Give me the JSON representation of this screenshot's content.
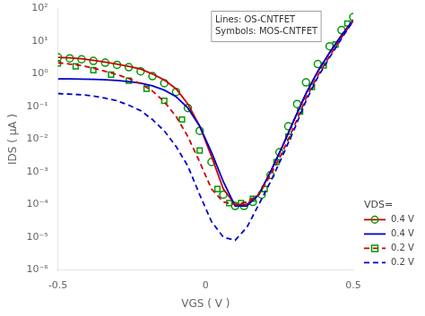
{
  "chart_data": {
    "type": "line",
    "annotation": [
      "Lines: OS-CNTFET",
      "Symbols: MOS-CNTFET"
    ],
    "xlabel": "VGS ( V )",
    "ylabel": "IDS ( μA )",
    "log": "y",
    "grid": false,
    "legend": "right",
    "legend_title": "VDS=",
    "legend_entries": [
      {
        "label": "0.4 V",
        "color": "#cc0000",
        "line_style": "solid",
        "marker": "circle"
      },
      {
        "label": "0.4 V",
        "color": "#0000cc",
        "line_style": "solid"
      },
      {
        "label": "0.2 V",
        "color": "#cc0000",
        "line_style": "dashed",
        "marker": "square"
      },
      {
        "label": "0.2 V",
        "color": "#0000cc",
        "line_style": "dashed"
      }
    ],
    "xlim": [
      -0.5,
      0.5
    ],
    "xticks": [
      -0.5,
      0,
      0.5
    ],
    "ylim": [
      1e-06,
      100.0
    ],
    "yticks": [
      {
        "value": 1e-06,
        "label": "10⁻⁶"
      },
      {
        "value": 1e-05,
        "label": "10⁻⁵"
      },
      {
        "value": 0.0001,
        "label": "10⁻⁴"
      },
      {
        "value": 0.001,
        "label": "10⁻³"
      },
      {
        "value": 0.01,
        "label": "10⁻²"
      },
      {
        "value": 0.1,
        "label": "10⁻¹"
      },
      {
        "value": 1,
        "label": "10⁰"
      },
      {
        "value": 10,
        "label": "10¹"
      },
      {
        "value": 100,
        "label": "10²"
      }
    ],
    "series": [
      {
        "type": "line",
        "color": "#0000cc",
        "line_style": "dashed",
        "x": [
          -0.5,
          -0.46,
          -0.42,
          -0.38,
          -0.34,
          -0.3,
          -0.26,
          -0.22,
          -0.18,
          -0.14,
          -0.1,
          -0.06,
          -0.02,
          0.02,
          0.06,
          0.1,
          0.14,
          0.18,
          0.22,
          0.26,
          0.3,
          0.34,
          0.38,
          0.42,
          0.46,
          0.5
        ],
        "values": [
          0.25,
          0.24,
          0.23,
          0.21,
          0.18,
          0.15,
          0.11,
          0.075,
          0.04,
          0.018,
          0.006,
          0.0015,
          0.0002,
          3e-05,
          1e-05,
          8e-06,
          2e-05,
          0.0001,
          0.0005,
          0.003,
          0.02,
          0.15,
          0.8,
          3.2,
          12.0,
          42.0
        ]
      },
      {
        "type": "line",
        "color": "#cc0000",
        "line_style": "dashed",
        "x": [
          -0.5,
          -0.46,
          -0.42,
          -0.38,
          -0.34,
          -0.3,
          -0.26,
          -0.22,
          -0.18,
          -0.14,
          -0.1,
          -0.06,
          -0.02,
          0.02,
          0.06,
          0.1,
          0.14,
          0.18,
          0.22,
          0.26,
          0.3,
          0.34,
          0.38,
          0.42,
          0.46,
          0.5
        ],
        "values": [
          2.2,
          2.0,
          1.8,
          1.5,
          1.2,
          0.95,
          0.72,
          0.5,
          0.3,
          0.14,
          0.05,
          0.012,
          0.002,
          0.0003,
          0.00012,
          0.0001,
          0.00012,
          0.0002,
          0.0008,
          0.004,
          0.025,
          0.18,
          0.9,
          3.5,
          13.0,
          42.0
        ]
      },
      {
        "type": "line",
        "color": "#0000cc",
        "line_style": "solid",
        "x": [
          -0.5,
          -0.46,
          -0.42,
          -0.38,
          -0.34,
          -0.3,
          -0.26,
          -0.22,
          -0.18,
          -0.14,
          -0.1,
          -0.06,
          -0.02,
          0.02,
          0.06,
          0.1,
          0.14,
          0.18,
          0.22,
          0.26,
          0.3,
          0.34,
          0.38,
          0.42,
          0.46,
          0.5
        ],
        "values": [
          0.7,
          0.7,
          0.69,
          0.68,
          0.66,
          0.63,
          0.58,
          0.52,
          0.43,
          0.32,
          0.2,
          0.09,
          0.025,
          0.004,
          0.0005,
          9e-05,
          9e-05,
          0.0002,
          0.001,
          0.006,
          0.04,
          0.25,
          1.2,
          4.5,
          15.0,
          45.0
        ]
      },
      {
        "type": "line",
        "color": "#cc0000",
        "line_style": "solid",
        "x": [
          -0.5,
          -0.46,
          -0.42,
          -0.38,
          -0.34,
          -0.3,
          -0.26,
          -0.22,
          -0.18,
          -0.14,
          -0.1,
          -0.06,
          -0.02,
          0.02,
          0.06,
          0.1,
          0.14,
          0.18,
          0.22,
          0.26,
          0.3,
          0.34,
          0.38,
          0.42,
          0.46,
          0.5
        ],
        "values": [
          3.2,
          3.1,
          2.9,
          2.6,
          2.3,
          2.0,
          1.7,
          1.4,
          1.0,
          0.65,
          0.35,
          0.12,
          0.025,
          0.003,
          0.0003,
          0.0001,
          0.0001,
          0.0002,
          0.001,
          0.006,
          0.04,
          0.25,
          1.2,
          4.5,
          15.0,
          45.0
        ]
      },
      {
        "type": "scatter",
        "color": "#009900",
        "marker": "circle",
        "x": [
          -0.5,
          -0.46,
          -0.42,
          -0.38,
          -0.34,
          -0.3,
          -0.26,
          -0.22,
          -0.18,
          -0.14,
          -0.1,
          -0.06,
          -0.02,
          0.02,
          0.06,
          0.1,
          0.13,
          0.16,
          0.19,
          0.22,
          0.25,
          0.28,
          0.31,
          0.34,
          0.38,
          0.42,
          0.46,
          0.5
        ],
        "values": [
          3.2,
          3.0,
          2.8,
          2.5,
          2.2,
          1.9,
          1.6,
          1.2,
          0.85,
          0.52,
          0.28,
          0.09,
          0.018,
          0.002,
          0.0002,
          9e-05,
          9e-05,
          0.00012,
          0.0002,
          0.0008,
          0.004,
          0.025,
          0.12,
          0.55,
          2.0,
          7.0,
          22.0,
          55.0
        ]
      },
      {
        "type": "scatter",
        "color": "#009900",
        "marker": "square",
        "x": [
          -0.5,
          -0.44,
          -0.38,
          -0.32,
          -0.26,
          -0.2,
          -0.14,
          -0.08,
          -0.02,
          0.04,
          0.08,
          0.12,
          0.16,
          0.2,
          0.24,
          0.28,
          0.32,
          0.36,
          0.4,
          0.44,
          0.48
        ],
        "values": [
          2.1,
          1.7,
          1.3,
          0.95,
          0.62,
          0.35,
          0.15,
          0.04,
          0.0045,
          0.0003,
          0.00011,
          0.00011,
          0.00015,
          0.0003,
          0.002,
          0.012,
          0.07,
          0.4,
          1.8,
          8.0,
          35.0
        ]
      }
    ]
  }
}
